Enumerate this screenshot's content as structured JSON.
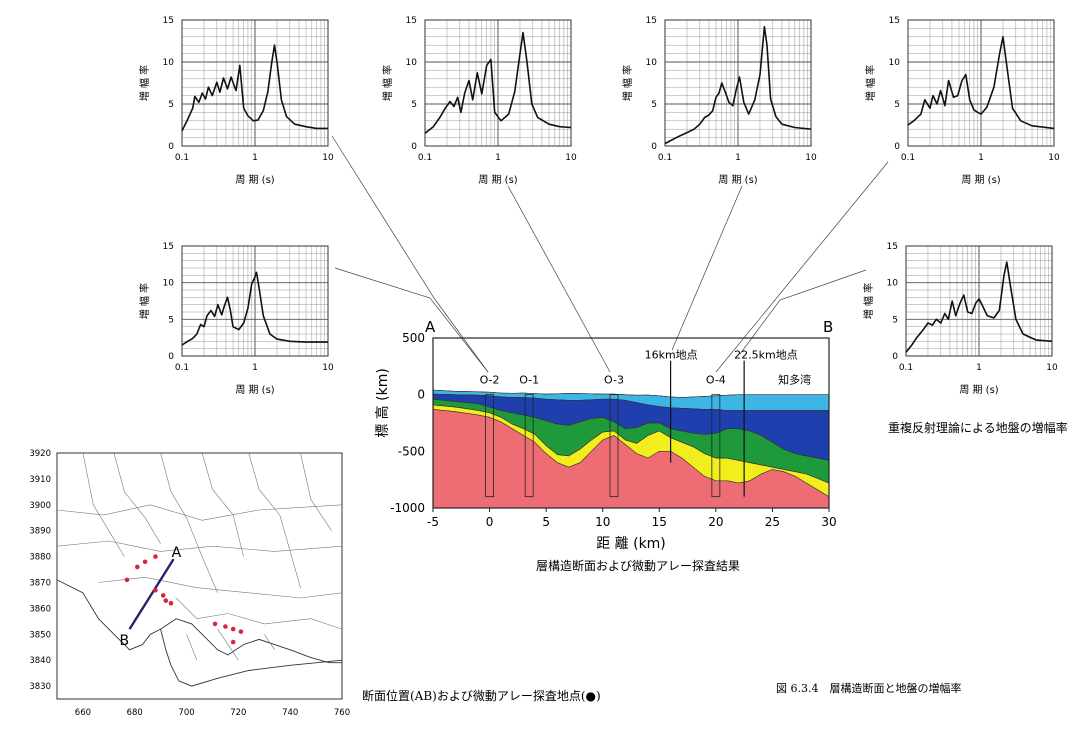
{
  "figure_caption": "図 6.3.4　層構造断面と地盤の増幅率",
  "amplification_caption": "重複反射理論による地盤の増幅率",
  "section_caption": "層構造断面および微動アレー探査結果",
  "map_caption": "断面位置(AB)および微動アレー探査地点(●)",
  "amp_axis": {
    "ylabel": "増 幅 率",
    "xlabel": "周 期 (s)",
    "yticks": [
      "0",
      "5",
      "10",
      "15"
    ],
    "xticks": [
      "0.1",
      "1",
      "10"
    ]
  },
  "chart_data": [
    {
      "type": "line",
      "id": "amp-1",
      "xlabel": "周 期 (s)",
      "ylabel": "増 幅 率",
      "xlim": [
        0.1,
        10
      ],
      "ylim": [
        0,
        15
      ],
      "xscale": "log",
      "x": [
        0.1,
        0.12,
        0.14,
        0.15,
        0.17,
        0.19,
        0.21,
        0.23,
        0.26,
        0.3,
        0.33,
        0.37,
        0.42,
        0.47,
        0.55,
        0.62,
        0.7,
        0.8,
        0.95,
        1.1,
        1.3,
        1.5,
        1.7,
        1.85,
        2.0,
        2.3,
        2.7,
        3.5,
        5,
        7,
        10
      ],
      "y": [
        1.8,
        3.2,
        4.5,
        5.9,
        5.2,
        6.3,
        5.6,
        7.0,
        6.0,
        7.6,
        6.4,
        8.1,
        6.8,
        8.2,
        6.6,
        9.6,
        4.5,
        3.6,
        3.0,
        3.1,
        4.2,
        6.5,
        10.0,
        12.0,
        10.0,
        5.5,
        3.5,
        2.6,
        2.3,
        2.1,
        2.1
      ]
    },
    {
      "type": "line",
      "id": "amp-2",
      "xlabel": "周 期 (s)",
      "ylabel": "増 幅 率",
      "xlim": [
        0.1,
        10
      ],
      "ylim": [
        0,
        15
      ],
      "xscale": "log",
      "x": [
        0.1,
        0.13,
        0.16,
        0.19,
        0.22,
        0.25,
        0.28,
        0.31,
        0.35,
        0.4,
        0.45,
        0.52,
        0.6,
        0.7,
        0.8,
        0.9,
        1.1,
        1.4,
        1.7,
        2.0,
        2.2,
        2.5,
        2.9,
        3.5,
        5,
        7,
        10
      ],
      "y": [
        1.5,
        2.3,
        3.4,
        4.5,
        5.3,
        4.7,
        5.8,
        4.0,
        6.3,
        7.8,
        5.5,
        8.7,
        6.2,
        9.6,
        10.3,
        4.0,
        3.0,
        3.8,
        6.5,
        11.0,
        13.5,
        10.0,
        5.0,
        3.4,
        2.6,
        2.3,
        2.2
      ]
    },
    {
      "type": "line",
      "id": "amp-3",
      "xlabel": "周 期 (s)",
      "ylabel": "増 幅 率",
      "xlim": [
        0.1,
        10
      ],
      "ylim": [
        0,
        15
      ],
      "xscale": "log",
      "x": [
        0.1,
        0.15,
        0.2,
        0.25,
        0.3,
        0.35,
        0.4,
        0.45,
        0.5,
        0.55,
        0.6,
        0.67,
        0.75,
        0.85,
        0.95,
        1.05,
        1.2,
        1.4,
        1.7,
        2.0,
        2.3,
        2.5,
        2.8,
        3.3,
        4,
        6,
        10
      ],
      "y": [
        0.3,
        1.1,
        1.6,
        2.0,
        2.6,
        3.4,
        3.7,
        4.2,
        5.8,
        6.3,
        7.5,
        6.4,
        5.2,
        4.8,
        6.8,
        8.2,
        5.2,
        3.8,
        5.5,
        8.5,
        14.2,
        12.0,
        5.6,
        3.5,
        2.6,
        2.2,
        2.0
      ]
    },
    {
      "type": "line",
      "id": "amp-4",
      "xlabel": "周 期 (s)",
      "ylabel": "増 幅 率",
      "xlim": [
        0.1,
        10
      ],
      "ylim": [
        0,
        15
      ],
      "xscale": "log",
      "x": [
        0.1,
        0.12,
        0.15,
        0.17,
        0.2,
        0.22,
        0.25,
        0.28,
        0.32,
        0.36,
        0.42,
        0.48,
        0.55,
        0.62,
        0.7,
        0.8,
        0.9,
        1.0,
        1.2,
        1.5,
        1.8,
        2.0,
        2.3,
        2.7,
        3.5,
        5,
        10
      ],
      "y": [
        2.5,
        3.0,
        3.8,
        5.5,
        4.5,
        6.0,
        5.0,
        6.6,
        4.8,
        7.8,
        5.8,
        6.0,
        7.8,
        8.5,
        5.5,
        4.3,
        4.0,
        3.8,
        4.6,
        7.0,
        11.0,
        13.0,
        9.0,
        4.5,
        3.0,
        2.4,
        2.1
      ]
    },
    {
      "type": "line",
      "id": "amp-5",
      "xlabel": "周 期 (s)",
      "ylabel": "増 幅 率",
      "xlim": [
        0.1,
        10
      ],
      "ylim": [
        0,
        15
      ],
      "xscale": "log",
      "x": [
        0.1,
        0.12,
        0.14,
        0.16,
        0.18,
        0.2,
        0.22,
        0.25,
        0.28,
        0.31,
        0.35,
        0.38,
        0.42,
        0.46,
        0.5,
        0.6,
        0.7,
        0.8,
        0.9,
        1.0,
        1.05,
        1.15,
        1.3,
        1.6,
        2,
        3,
        5,
        10
      ],
      "y": [
        1.5,
        2.0,
        2.4,
        3.0,
        4.3,
        4.0,
        5.5,
        6.2,
        5.4,
        7.0,
        5.6,
        6.8,
        8.0,
        6.2,
        4.0,
        3.6,
        4.5,
        6.5,
        9.8,
        10.8,
        11.4,
        9.0,
        5.5,
        3.0,
        2.3,
        2.0,
        1.9,
        1.9
      ]
    },
    {
      "type": "line",
      "id": "amp-6",
      "xlabel": "周 期 (s)",
      "ylabel": "増 幅 率",
      "xlim": [
        0.1,
        10
      ],
      "ylim": [
        0,
        15
      ],
      "xscale": "log",
      "x": [
        0.1,
        0.12,
        0.14,
        0.17,
        0.2,
        0.23,
        0.26,
        0.3,
        0.34,
        0.38,
        0.43,
        0.48,
        0.55,
        0.62,
        0.7,
        0.8,
        0.9,
        1.0,
        1.1,
        1.3,
        1.6,
        1.9,
        2.2,
        2.4,
        2.7,
        3.2,
        4,
        6,
        10
      ],
      "y": [
        0.5,
        1.5,
        2.5,
        3.5,
        4.5,
        4.2,
        5.0,
        4.5,
        5.8,
        5.0,
        7.5,
        5.5,
        7.2,
        8.3,
        6.0,
        5.8,
        7.2,
        7.8,
        7.0,
        5.5,
        5.2,
        6.2,
        11.0,
        12.8,
        9.5,
        5.0,
        3.0,
        2.2,
        2.0
      ]
    },
    {
      "type": "area",
      "id": "cross-section",
      "xlabel": "距 離 (km)",
      "ylabel": "標 高 (km)",
      "xlim": [
        -5,
        30
      ],
      "ylim": [
        -1000,
        500
      ],
      "xticks": [
        "-5",
        "0",
        "5",
        "10",
        "15",
        "20",
        "25",
        "30"
      ],
      "yticks": [
        "500",
        "0",
        "-500",
        "-1000"
      ],
      "x": [
        -5,
        -3,
        -1,
        0,
        1,
        2,
        3,
        4,
        5,
        6,
        7,
        8,
        9,
        10,
        11,
        12,
        13,
        14,
        15,
        16,
        17,
        18,
        19,
        20,
        21,
        22,
        23,
        24,
        25,
        26,
        27,
        28,
        29,
        30
      ],
      "series": [
        {
          "values": [
            40,
            30,
            25,
            22,
            15,
            12,
            15,
            10,
            5,
            8,
            12,
            10,
            8,
            5,
            5,
            0,
            -5,
            -3,
            -10,
            -20,
            -25,
            -20,
            -15,
            -10,
            -5,
            0,
            0,
            0,
            0,
            0,
            0,
            0,
            0,
            0
          ]
        },
        {
          "values": [
            5,
            0,
            -5,
            -10,
            -20,
            -25,
            -25,
            -30,
            -40,
            -45,
            -50,
            -50,
            -45,
            -40,
            -40,
            -50,
            -70,
            -90,
            -105,
            -115,
            -120,
            -125,
            -130,
            -130,
            -140,
            -140,
            -140,
            -140,
            -140,
            -140,
            -140,
            -140,
            -140,
            -140
          ]
        },
        {
          "values": [
            -40,
            -60,
            -80,
            -110,
            -140,
            -160,
            -180,
            -200,
            -230,
            -260,
            -270,
            -240,
            -210,
            -200,
            -240,
            -300,
            -290,
            -250,
            -250,
            -300,
            -320,
            -340,
            -350,
            -340,
            -300,
            -300,
            -320,
            -360,
            -420,
            -480,
            -520,
            -540,
            -560,
            -580
          ]
        },
        {
          "values": [
            -90,
            -110,
            -140,
            -160,
            -200,
            -260,
            -300,
            -350,
            -450,
            -530,
            -540,
            -480,
            -400,
            -330,
            -320,
            -400,
            -430,
            -360,
            -320,
            -380,
            -420,
            -460,
            -520,
            -560,
            -560,
            -580,
            -600,
            -620,
            -640,
            -660,
            -680,
            -700,
            -740,
            -780
          ]
        },
        {
          "values": [
            -130,
            -150,
            -180,
            -200,
            -240,
            -300,
            -360,
            -420,
            -520,
            -600,
            -640,
            -600,
            -500,
            -400,
            -360,
            -440,
            -520,
            -560,
            -500,
            -500,
            -560,
            -640,
            -720,
            -760,
            -760,
            -780,
            -760,
            -700,
            -660,
            -680,
            -720,
            -780,
            -840,
            -900
          ]
        },
        {
          "values": [
            -1000,
            -1000,
            -1000,
            -1000,
            -1000,
            -1000,
            -1000,
            -1000,
            -1000,
            -1000,
            -1000,
            -1000,
            -1000,
            -1000,
            -1000,
            -1000,
            -1000,
            -1000,
            -1000,
            -1000,
            -1000,
            -1000,
            -1000,
            -1000,
            -1000,
            -1000,
            -1000,
            -1000,
            -1000,
            -1000,
            -1000,
            -1000,
            -1000,
            -1000
          ]
        }
      ],
      "colors": [
        "#3db6e6",
        "#1f3fae",
        "#1e9a3c",
        "#f2ee1e",
        "#e05530",
        "#ee6c74"
      ],
      "end_labels": {
        "left": "A",
        "right": "B"
      },
      "sites": [
        {
          "name": "O-2",
          "x": 0
        },
        {
          "name": "O-1",
          "x": 3.5
        },
        {
          "name": "O-3",
          "x": 11
        },
        {
          "name": "O-4",
          "x": 20
        }
      ],
      "points": [
        {
          "name": "16km地点",
          "x": 16
        },
        {
          "name": "22.5km地点",
          "x": 22.5
        }
      ],
      "annotation": "知多湾"
    },
    {
      "type": "scatter",
      "id": "location-map",
      "xlim": [
        650,
        760
      ],
      "ylim": [
        3825,
        3920
      ],
      "xticks": [
        "660",
        "680",
        "700",
        "720",
        "740",
        "760"
      ],
      "yticks": [
        "3830",
        "3840",
        "3850",
        "3860",
        "3870",
        "3880",
        "3890",
        "3900",
        "3910",
        "3920"
      ],
      "section_line": {
        "A": [
          695,
          3879
        ],
        "B": [
          678,
          3852
        ]
      },
      "labels": {
        "A": "A",
        "B": "B"
      },
      "x": [
        684,
        688,
        681,
        677,
        688,
        691,
        692,
        694,
        711,
        715,
        718,
        718,
        721
      ],
      "y": [
        3878,
        3880,
        3876,
        3871,
        3867,
        3865,
        3863,
        3862,
        3854,
        3853,
        3852,
        3847,
        3851
      ]
    }
  ]
}
